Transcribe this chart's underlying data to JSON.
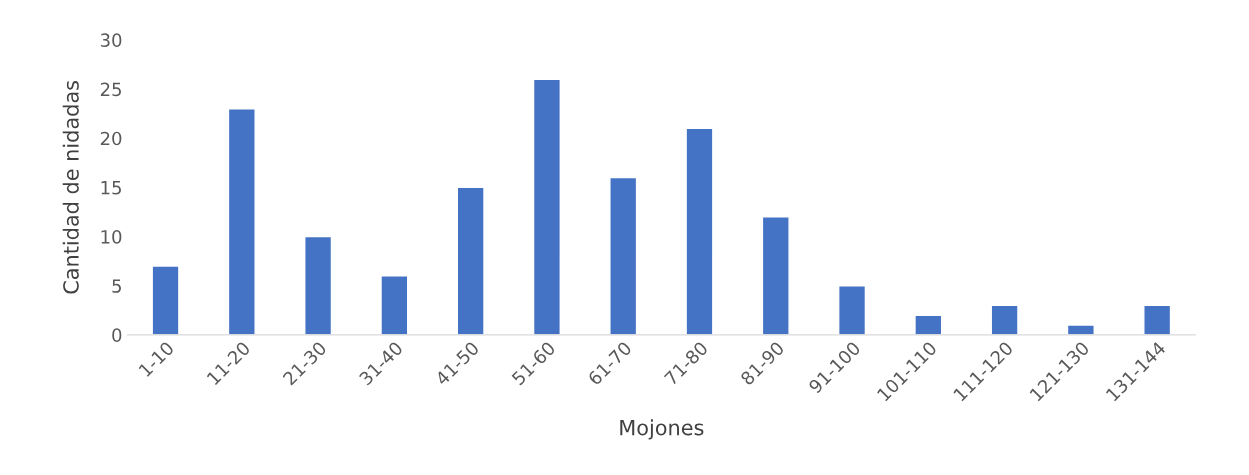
{
  "chart_data": {
    "type": "bar",
    "xlabel": "Mojones",
    "ylabel": "Cantidad de nidadas",
    "categories": [
      "1-10",
      "11-20",
      "21-30",
      "31-40",
      "41-50",
      "51-60",
      "61-70",
      "71-80",
      "81-90",
      "91-100",
      "101-110",
      "111-120",
      "121-130",
      "131-144"
    ],
    "values": [
      7,
      23,
      10,
      6,
      15,
      26,
      16,
      21,
      12,
      5,
      2,
      3,
      1,
      3
    ],
    "color": "#4472c4",
    "ylim": [
      0,
      30
    ],
    "yticks": [
      0,
      5,
      10,
      15,
      20,
      25,
      30
    ],
    "grid": false,
    "legend": false
  }
}
